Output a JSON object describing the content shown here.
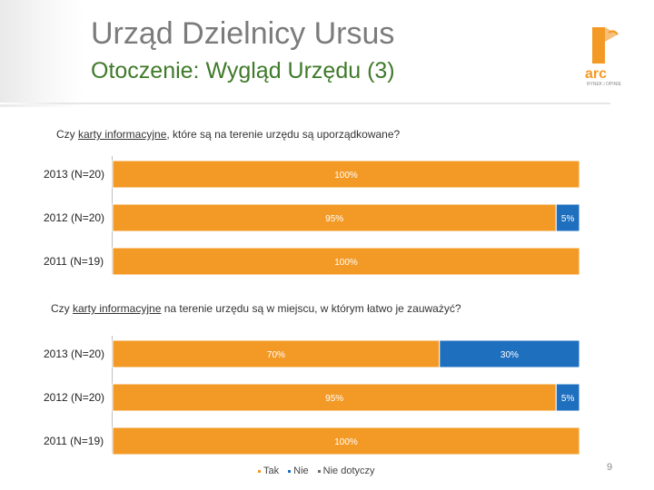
{
  "header": {
    "title": "Urząd Dzielnicy Ursus",
    "subtitle": "Otoczenie: Wygląd Urzędu (3)",
    "logo_text": "arc",
    "logo_tagline": "RYNEK i OPINIE"
  },
  "colors": {
    "tak": "#F39A26",
    "nie": "#1F6FBF",
    "nie_dotyczy": "#6b6b6b"
  },
  "chart_data": [
    {
      "type": "bar",
      "orientation": "horizontal",
      "stacked": true,
      "title_prefix": "Czy ",
      "title_underlined": "karty informacyjne",
      "title_suffix": ", które są na terenie urzędu są uporządkowane?",
      "categories": [
        "2013 (N=20)",
        "2012 (N=20)",
        "2011 (N=19)"
      ],
      "series": [
        {
          "name": "Tak",
          "values": [
            100,
            95,
            100
          ],
          "labels": [
            "100%",
            "95%",
            "100%"
          ]
        },
        {
          "name": "Nie",
          "values": [
            0,
            5,
            0
          ],
          "labels": [
            "",
            "5%",
            ""
          ]
        },
        {
          "name": "Nie dotyczy",
          "values": [
            0,
            0,
            0
          ],
          "labels": [
            "",
            "",
            ""
          ]
        }
      ],
      "xlim": [
        0,
        100
      ]
    },
    {
      "type": "bar",
      "orientation": "horizontal",
      "stacked": true,
      "title_prefix": "Czy ",
      "title_underlined": "karty informacyjne",
      "title_suffix": " na terenie urzędu są w miejscu, w którym łatwo je zauważyć?",
      "categories": [
        "2013 (N=20)",
        "2012 (N=20)",
        "2011 (N=19)"
      ],
      "series": [
        {
          "name": "Tak",
          "values": [
            70,
            95,
            100
          ],
          "labels": [
            "70%",
            "95%",
            "100%"
          ]
        },
        {
          "name": "Nie",
          "values": [
            30,
            5,
            0
          ],
          "labels": [
            "30%",
            "5%",
            ""
          ]
        },
        {
          "name": "Nie dotyczy",
          "values": [
            0,
            0,
            0
          ],
          "labels": [
            "",
            "",
            ""
          ]
        }
      ],
      "xlim": [
        0,
        100
      ]
    }
  ],
  "legend": [
    {
      "label": "Tak"
    },
    {
      "label": "Nie"
    },
    {
      "label": "Nie dotyczy"
    }
  ],
  "page_number": "9"
}
